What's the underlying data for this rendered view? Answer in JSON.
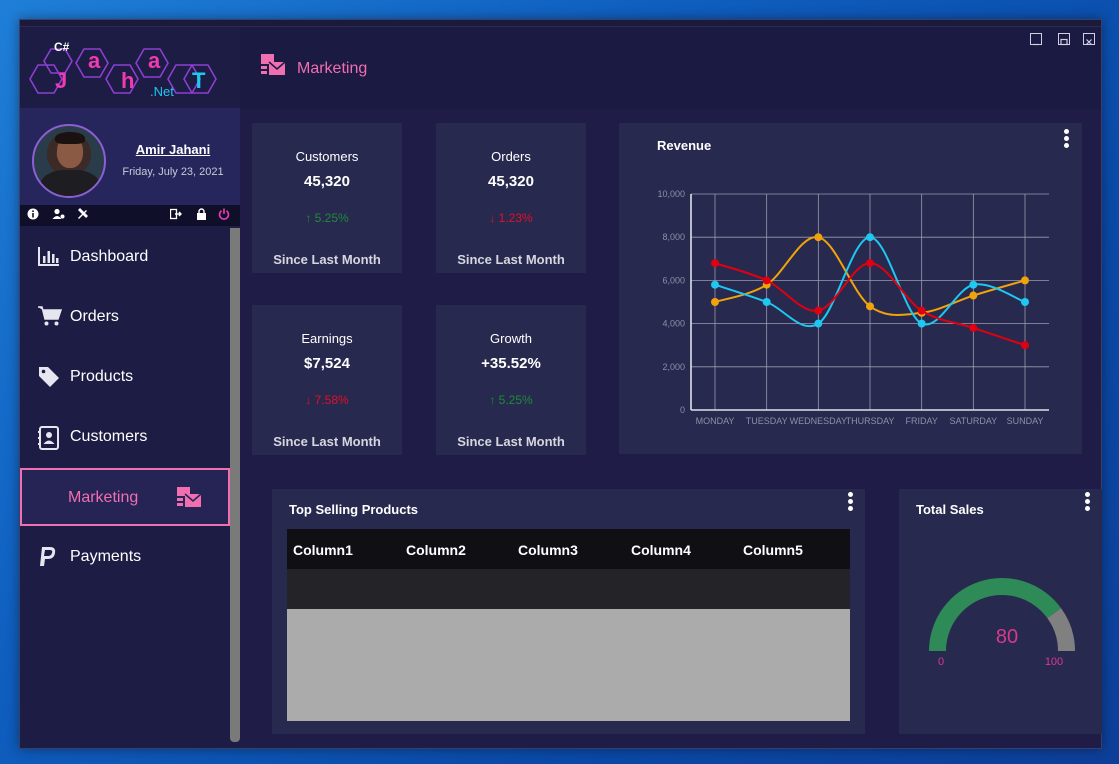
{
  "app": {
    "logo_top": "C#",
    "logo_letters": [
      "J",
      "a",
      "h",
      "a",
      "T"
    ],
    "logo_sub": ".Net"
  },
  "header": {
    "title": "Marketing"
  },
  "profile": {
    "name": "Amir Jahani",
    "date": "Friday, July 23, 2021"
  },
  "sidebar": {
    "items": [
      {
        "label": "Dashboard",
        "icon": "bar-chart-icon"
      },
      {
        "label": "Orders",
        "icon": "shopping-cart-icon"
      },
      {
        "label": "Products",
        "icon": "tag-icon"
      },
      {
        "label": "Customers",
        "icon": "address-book-icon"
      },
      {
        "label": "Marketing",
        "icon": "mail-bulk-icon",
        "active": true
      },
      {
        "label": "Payments",
        "icon": "paypal-icon"
      }
    ]
  },
  "stats": [
    {
      "label": "Customers",
      "value": "45,320",
      "change": "5.25%",
      "direction": "up",
      "color": "#1f8a3a",
      "foot": "Since Last Month"
    },
    {
      "label": "Orders",
      "value": "45,320",
      "change": "1.23%",
      "direction": "down",
      "color": "#e0102a",
      "foot": "Since Last Month"
    },
    {
      "label": "Earnings",
      "value": "$7,524",
      "change": "7.58%",
      "direction": "down",
      "color": "#e0102a",
      "foot": "Since Last Month"
    },
    {
      "label": "Growth",
      "value": "+35.52%",
      "change": "5.25%",
      "direction": "up",
      "color": "#1f8a3a",
      "foot": "Since Last Month"
    }
  ],
  "revenue": {
    "title": "Revenue"
  },
  "chart_data": [
    {
      "type": "line",
      "title": "Revenue",
      "categories": [
        "MONDAY",
        "TUESDAY",
        "WEDNESDAY",
        "THURSDAY",
        "FRIDAY",
        "SATURDAY",
        "SUNDAY"
      ],
      "ylim": [
        0,
        10000
      ],
      "yticks": [
        "0",
        "2,000",
        "4,000",
        "6,000",
        "8,000",
        "10,000"
      ],
      "grid": true,
      "series": [
        {
          "color": "#f0a30a",
          "values": [
            5000,
            5800,
            8000,
            4800,
            4500,
            5300,
            6000
          ]
        },
        {
          "color": "#1ec8f0",
          "values": [
            5800,
            5000,
            4000,
            8000,
            4000,
            5800,
            5000
          ]
        },
        {
          "color": "#e00010",
          "values": [
            6800,
            6000,
            4600,
            6800,
            4600,
            3800,
            3000
          ]
        }
      ]
    },
    {
      "type": "gauge",
      "title": "Total Sales",
      "value": 80,
      "min": 0,
      "max": 100,
      "value_label": "80",
      "min_label": "0",
      "max_label": "100",
      "fill_color": "#2e8b57",
      "rest_color": "#808080"
    }
  ],
  "top_products": {
    "title": "Top Selling Products",
    "columns": [
      "Column1",
      "Column2",
      "Column3",
      "Column4",
      "Column5"
    ]
  },
  "total_sales": {
    "title": "Total Sales"
  }
}
